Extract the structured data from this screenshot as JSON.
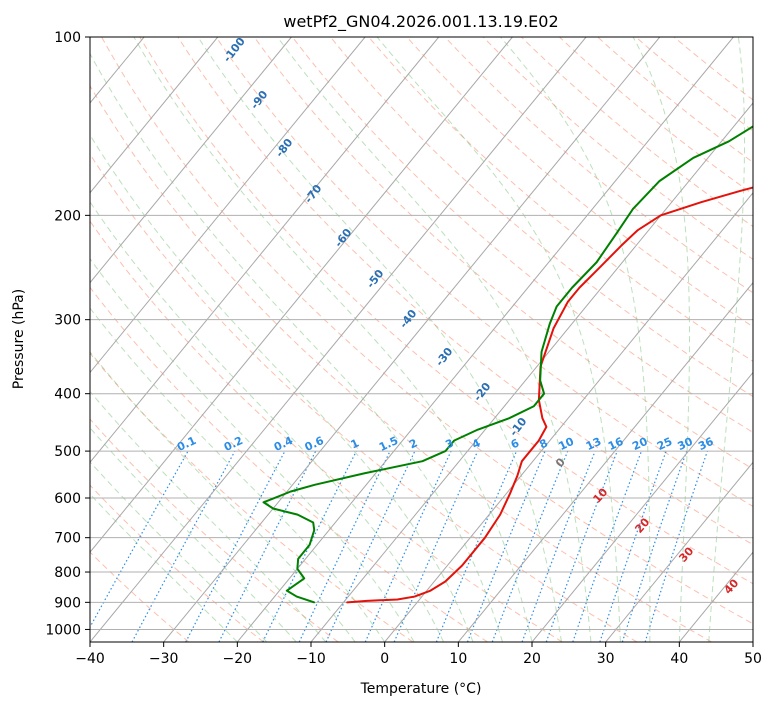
{
  "chart_data": {
    "type": "line",
    "subtype": "skew-T log-P diagram",
    "title": "wetPf2_GN04.2026.001.13.19.E02",
    "xlabel": "Temperature (°C)",
    "ylabel": "Pressure (hPa)",
    "xlim": [
      -40,
      50
    ],
    "ylim": [
      1050,
      100
    ],
    "y_scale": "log",
    "grid": true,
    "x_ticks": [
      -40,
      -30,
      -20,
      -10,
      0,
      10,
      20,
      30,
      40,
      50
    ],
    "x_tick_labels": [
      "−40",
      "−30",
      "−20",
      "−10",
      "0",
      "10",
      "20",
      "30",
      "40",
      "50"
    ],
    "y_ticks": [
      1000,
      900,
      800,
      700,
      600,
      500,
      400,
      300,
      200,
      100
    ],
    "y_tick_labels": [
      "1000",
      "900",
      "800",
      "700",
      "600",
      "500",
      "400",
      "300",
      "200",
      "100"
    ],
    "colors": {
      "temperature": "#e3120b",
      "dewpoint": "#008000",
      "isotherm": "#a8a8a8",
      "dry_adiabat": "#fa8a6a",
      "moist_adiabat": "#7ac27a",
      "mixing_ratio": "#2b8de6",
      "dry_label": "#2a6fb3",
      "moist_label": "#d62728"
    },
    "series": [
      {
        "role": "temperature",
        "x": [
          -9.5,
          -7,
          -3,
          -1,
          0.5,
          1.5,
          2,
          2,
          1.5,
          0.5,
          -0.5,
          -1.5,
          -1.5,
          -2,
          -3.5,
          -6,
          -9.5,
          -12,
          -13,
          -13,
          -12.5,
          -12,
          -11.5,
          -10,
          -6,
          -2,
          2,
          5,
          8,
          10.5,
          15,
          20,
          25
        ],
        "y": [
          900,
          895,
          890,
          880,
          860,
          830,
          780,
          700,
          640,
          590,
          550,
          520,
          480,
          455,
          440,
          410,
          360,
          310,
          280,
          265,
          245,
          225,
          212,
          200,
          190,
          182,
          175,
          170,
          165,
          150,
          135,
          115,
          100
        ]
      },
      {
        "role": "dewpoint",
        "x": [
          -14,
          -17,
          -19,
          -18,
          -20,
          -21,
          -21,
          -22,
          -23,
          -26,
          -30,
          -32,
          -31,
          -29.5,
          -27,
          -21.5,
          -15,
          -13,
          -13,
          -11,
          -8,
          -6,
          -6,
          -8,
          -11,
          -13,
          -14,
          -14,
          -13.5,
          -14,
          -14.5,
          -14,
          -12,
          -9,
          -5,
          -1
        ],
        "y": [
          900,
          880,
          860,
          820,
          790,
          760,
          720,
          680,
          660,
          640,
          625,
          610,
          600,
          585,
          570,
          545,
          520,
          500,
          480,
          460,
          440,
          420,
          400,
          380,
          340,
          305,
          285,
          265,
          240,
          215,
          195,
          175,
          160,
          150,
          130,
          100
        ]
      }
    ],
    "dry_adiabat_labels": [
      "-100",
      "-90",
      "-80",
      "-70",
      "-60",
      "-50",
      "-40",
      "-30",
      "-20",
      "-10"
    ],
    "moist_adiabat_labels": [
      "0",
      "10",
      "20",
      "30",
      "40"
    ],
    "mixing_ratio_labels": [
      "0.1",
      "0.2",
      "0.4",
      "0.6",
      "1",
      "1.5",
      "2",
      "3",
      "4",
      "6",
      "8",
      "10",
      "13",
      "16",
      "20",
      "25",
      "30",
      "36"
    ]
  }
}
